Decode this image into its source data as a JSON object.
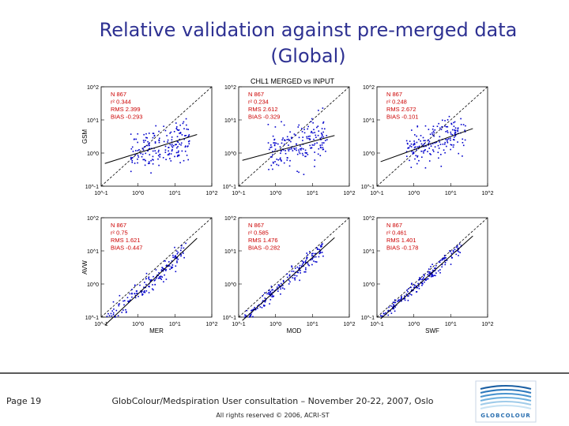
{
  "slide": {
    "title_line1": "Relative validation against pre-merged data",
    "title_line2": "(Global)"
  },
  "footer": {
    "page": "Page 19",
    "event": "GlobColour/Medspiration User consultation – November 20-22, 2007, Oslo",
    "rights": "All rights reserved © 2006, ACRI-ST",
    "logo_name": "GLOBCOLOUR"
  },
  "chart_data": {
    "type": "scatter",
    "title": "CHL1 MERGED vs INPUT",
    "scale": "log-log",
    "xlim": [
      0.1,
      100
    ],
    "ylim": [
      0.1,
      100
    ],
    "x_ticks": [
      "10^-1",
      "10^0",
      "10^1",
      "10^2"
    ],
    "y_ticks": [
      "10^-1",
      "10^0",
      "10^1",
      "10^2"
    ],
    "point_color": "#0000cc",
    "stats_color": "#cc0000",
    "row_labels": [
      "GSM",
      "AVW"
    ],
    "col_labels": [
      "MER",
      "MOD",
      "SWF"
    ],
    "panels": [
      {
        "row": "GSM",
        "col": "MER",
        "N": "867",
        "r2": "0.344",
        "RMS": "2.399",
        "BIAS": "-0.293",
        "slope": 0.35,
        "intercept": 0.0,
        "spread": 0.3
      },
      {
        "row": "GSM",
        "col": "MOD",
        "N": "867",
        "r2": "0.234",
        "RMS": "2.612",
        "BIAS": "-0.329",
        "slope": 0.3,
        "intercept": 0.05,
        "spread": 0.32
      },
      {
        "row": "GSM",
        "col": "SWF",
        "N": "867",
        "r2": "0.248",
        "RMS": "2.672",
        "BIAS": "-0.101",
        "slope": 0.4,
        "intercept": 0.1,
        "spread": 0.28
      },
      {
        "row": "AVW",
        "col": "MER",
        "N": "867",
        "r2": "0.75",
        "RMS": "1.621",
        "BIAS": "-0.447",
        "slope": 1.05,
        "intercept": -0.3,
        "spread": 0.15
      },
      {
        "row": "AVW",
        "col": "MOD",
        "N": "867",
        "r2": "0.585",
        "RMS": "1.476",
        "BIAS": "-0.282",
        "slope": 1.0,
        "intercept": -0.2,
        "spread": 0.12
      },
      {
        "row": "AVW",
        "col": "SWF",
        "N": "867",
        "r2": "0.461",
        "RMS": "1.401",
        "BIAS": "-0.178",
        "slope": 1.0,
        "intercept": -0.15,
        "spread": 0.1
      }
    ]
  }
}
